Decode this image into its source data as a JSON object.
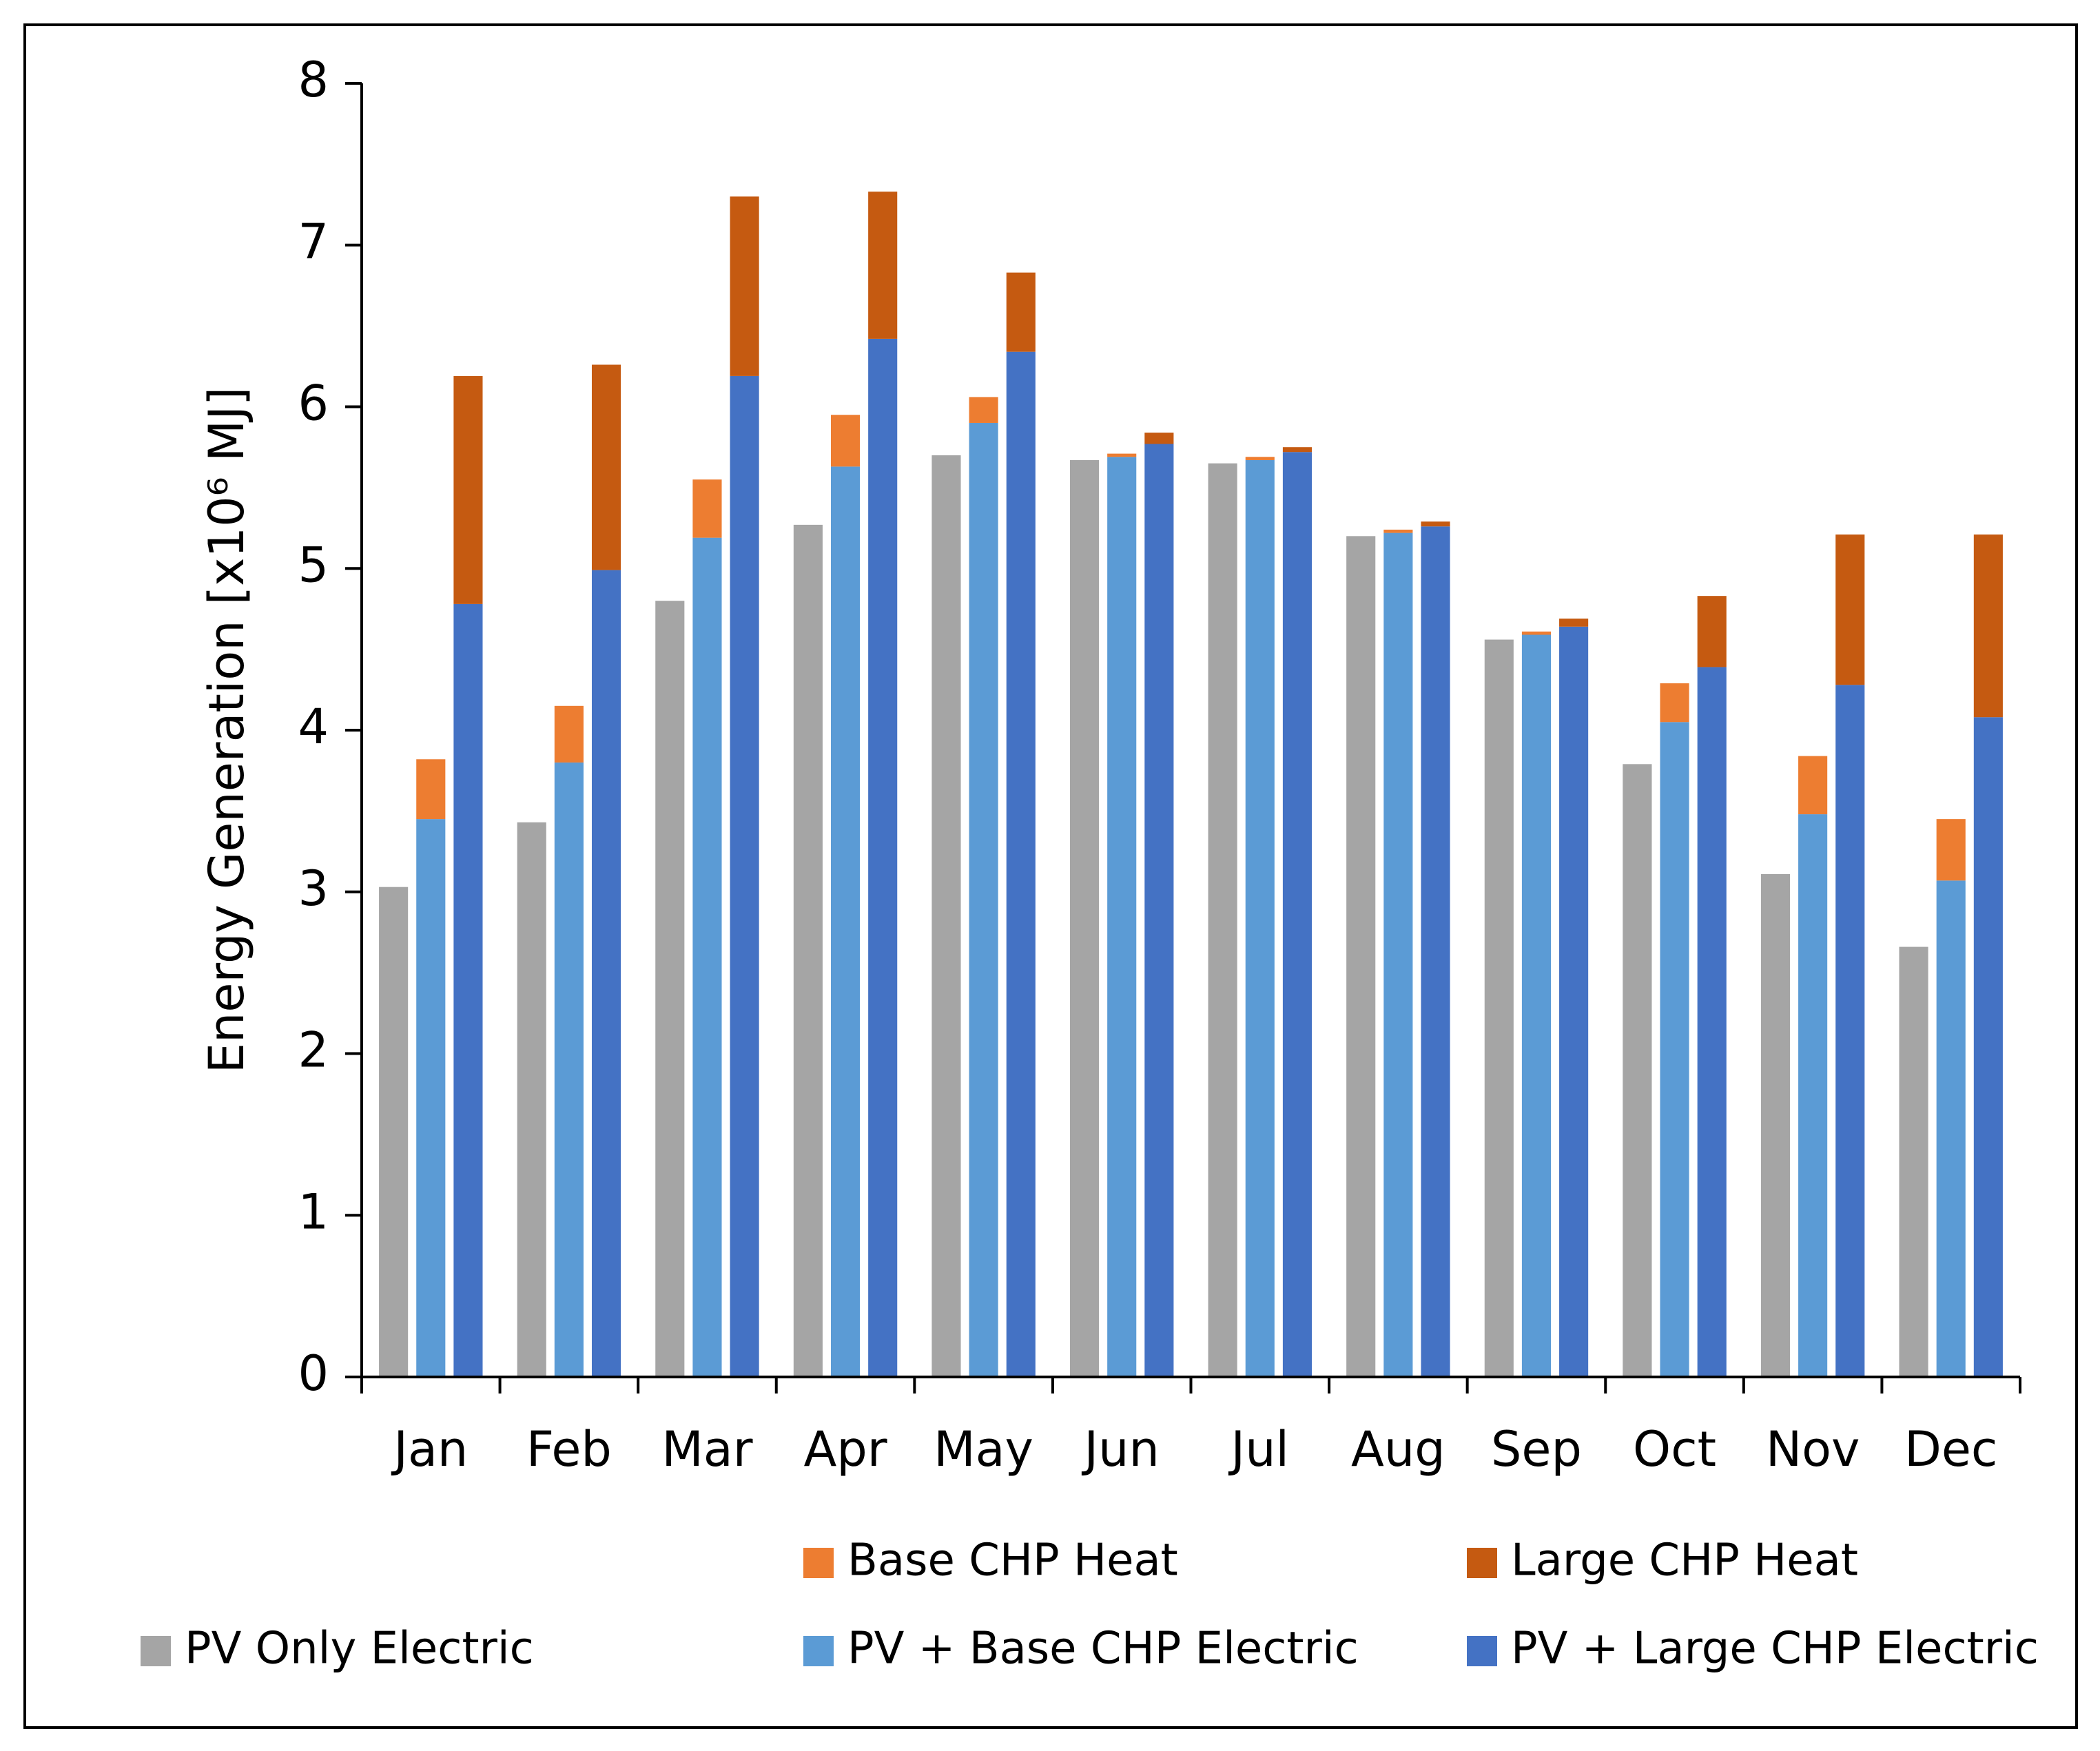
{
  "chart_data": {
    "type": "grouped-stacked-bar",
    "y_label": "Energy Generation [x10⁶ MJ]",
    "categories": [
      "Jan",
      "Feb",
      "Mar",
      "Apr",
      "May",
      "Jun",
      "Jul",
      "Aug",
      "Sep",
      "Oct",
      "Nov",
      "Dec"
    ],
    "ylim": [
      0,
      8
    ],
    "yticks": [
      0,
      1,
      2,
      3,
      4,
      5,
      6,
      7,
      8
    ],
    "grid": false,
    "groups": [
      {
        "series": [
          {
            "name": "PV Only Electric",
            "color": "#a5a5a5",
            "values": [
              3.03,
              3.43,
              4.8,
              5.27,
              5.7,
              5.67,
              5.65,
              5.2,
              4.56,
              3.79,
              3.11,
              2.66
            ]
          }
        ]
      },
      {
        "series": [
          {
            "name": "PV + Base CHP Electric",
            "color": "#5b9bd5",
            "values": [
              3.45,
              3.8,
              5.19,
              5.63,
              5.9,
              5.69,
              5.67,
              5.22,
              4.59,
              4.05,
              3.48,
              3.07
            ]
          },
          {
            "name": "Base CHP Heat",
            "color": "#ed7d31",
            "values": [
              0.37,
              0.35,
              0.36,
              0.32,
              0.16,
              0.02,
              0.02,
              0.02,
              0.02,
              0.24,
              0.36,
              0.38
            ]
          }
        ]
      },
      {
        "series": [
          {
            "name": "PV + Large CHP Electric",
            "color": "#4472c4",
            "values": [
              4.78,
              4.99,
              6.19,
              6.42,
              6.34,
              5.77,
              5.72,
              5.26,
              4.64,
              4.39,
              4.28,
              4.08
            ]
          },
          {
            "name": "Large CHP Heat",
            "color": "#c55a11",
            "values": [
              1.41,
              1.27,
              1.11,
              0.91,
              0.49,
              0.07,
              0.03,
              0.03,
              0.05,
              0.44,
              0.93,
              1.13
            ]
          }
        ]
      }
    ]
  }
}
